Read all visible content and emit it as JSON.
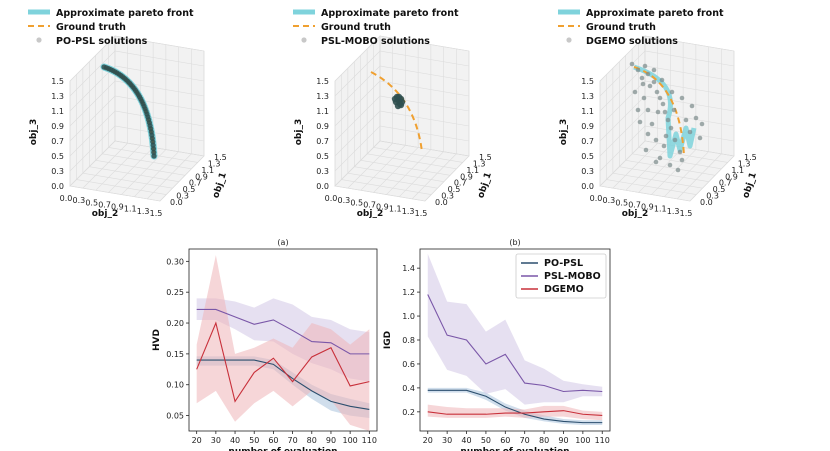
{
  "colors": {
    "pareto": "#7fd3dc",
    "truth": "#f0a030",
    "po_psl": "#2c4f6e",
    "psl_mobo": "#7a57a8",
    "dgemo": "#c8303a",
    "po_psl_band": "#a9c3dc",
    "psl_mobo_band": "#d2c6e6",
    "dgemo_band": "#efb4b8",
    "points": "#2f4f4f"
  },
  "chart_data": [
    {
      "type": "scatter3d",
      "name": "PO-PSL",
      "legend": [
        "Approximate pareto front",
        "Ground truth",
        "PO-PSL solutions"
      ],
      "axes": {
        "z_label": "obj_3",
        "z_ticks": [
          "0.0",
          "0.3",
          "0.5",
          "0.7",
          "0.9",
          "1.1",
          "1.3",
          "1.5"
        ],
        "x_label": "obj_2",
        "x_ticks": [
          "0.0",
          "0.3",
          "0.5",
          "0.7",
          "0.9",
          "1.1",
          "1.3",
          "1.5"
        ],
        "y_label": "obj_1",
        "y_ticks": [
          "0.0",
          "0.3",
          "0.5",
          "0.7",
          "0.9",
          "1.1",
          "1.3",
          "1.5"
        ]
      }
    },
    {
      "type": "scatter3d",
      "name": "PSL-MOBO",
      "legend": [
        "Approximate pareto front",
        "Ground truth",
        "PSL-MOBO solutions"
      ],
      "axes": {
        "z_label": "obj_3",
        "z_ticks": [
          "0.0",
          "0.3",
          "0.5",
          "0.7",
          "0.9",
          "1.1",
          "1.3",
          "1.5"
        ],
        "x_label": "obj_2",
        "x_ticks": [
          "0.0",
          "0.3",
          "0.5",
          "0.7",
          "0.9",
          "1.1",
          "1.3",
          "1.5"
        ],
        "y_label": "obj_1",
        "y_ticks": [
          "0.0",
          "0.3",
          "0.5",
          "0.7",
          "0.9",
          "1.1",
          "1.3",
          "1.5"
        ]
      }
    },
    {
      "type": "scatter3d",
      "name": "DGEMO",
      "legend": [
        "Approximate pareto front",
        "Ground truth",
        "DGEMO solutions"
      ],
      "axes": {
        "z_label": "obj_3",
        "z_ticks": [
          "0.0",
          "0.3",
          "0.5",
          "0.7",
          "0.9",
          "1.1",
          "1.3",
          "1.5"
        ],
        "x_label": "obj_2",
        "x_ticks": [
          "0.0",
          "0.3",
          "0.5",
          "0.7",
          "0.9",
          "1.1",
          "1.3",
          "1.5"
        ],
        "y_label": "obj_1",
        "y_ticks": [
          "0.0",
          "0.3",
          "0.5",
          "0.7",
          "0.9",
          "1.1",
          "1.3",
          "1.5"
        ]
      }
    },
    {
      "type": "line",
      "caption": "(a)",
      "xlabel": "number of evaluation",
      "ylabel": "HVD",
      "x": [
        20,
        30,
        40,
        50,
        60,
        70,
        80,
        90,
        100,
        110
      ],
      "x_ticks": [
        "20",
        "30",
        "40",
        "50",
        "60",
        "70",
        "80",
        "90",
        "100",
        "110"
      ],
      "y_ticks": [
        "0.05",
        "0.10",
        "0.15",
        "0.20",
        "0.25",
        "0.30"
      ],
      "ylim": [
        0.025,
        0.32
      ],
      "series": [
        {
          "name": "PO-PSL",
          "values": [
            0.14,
            0.14,
            0.14,
            0.14,
            0.133,
            0.11,
            0.09,
            0.073,
            0.065,
            0.06
          ],
          "lower": [
            0.131,
            0.131,
            0.131,
            0.131,
            0.125,
            0.1,
            0.077,
            0.058,
            0.05,
            0.046
          ],
          "upper": [
            0.146,
            0.146,
            0.146,
            0.146,
            0.14,
            0.12,
            0.1,
            0.085,
            0.077,
            0.07
          ]
        },
        {
          "name": "PSL-MOBO",
          "values": [
            0.222,
            0.222,
            0.21,
            0.198,
            0.205,
            0.188,
            0.17,
            0.168,
            0.15,
            0.15
          ],
          "lower": [
            0.205,
            0.205,
            0.19,
            0.172,
            0.17,
            0.15,
            0.135,
            0.125,
            0.11,
            0.105
          ],
          "upper": [
            0.24,
            0.24,
            0.235,
            0.225,
            0.24,
            0.23,
            0.21,
            0.205,
            0.19,
            0.185
          ]
        },
        {
          "name": "DGEMO",
          "values": [
            0.125,
            0.2,
            0.073,
            0.12,
            0.143,
            0.105,
            0.145,
            0.16,
            0.098,
            0.105
          ],
          "lower": [
            0.07,
            0.09,
            0.04,
            0.07,
            0.09,
            0.065,
            0.09,
            0.075,
            0.035,
            0.025
          ],
          "upper": [
            0.165,
            0.31,
            0.15,
            0.16,
            0.175,
            0.16,
            0.2,
            0.19,
            0.165,
            0.19
          ]
        }
      ]
    },
    {
      "type": "line",
      "caption": "(b)",
      "xlabel": "number of evaluation",
      "ylabel": "IGD",
      "x": [
        20,
        30,
        40,
        50,
        60,
        70,
        80,
        90,
        100,
        110
      ],
      "x_ticks": [
        "20",
        "30",
        "40",
        "50",
        "60",
        "70",
        "80",
        "90",
        "100",
        "110"
      ],
      "y_ticks": [
        "0.2",
        "0.4",
        "0.6",
        "0.8",
        "1.0",
        "1.2",
        "1.4"
      ],
      "ylim": [
        0.04,
        1.56
      ],
      "legend": [
        "PO-PSL",
        "PSL-MOBO",
        "DGEMO"
      ],
      "series": [
        {
          "name": "PO-PSL",
          "values": [
            0.38,
            0.38,
            0.38,
            0.33,
            0.24,
            0.18,
            0.14,
            0.12,
            0.11,
            0.11
          ],
          "lower": [
            0.36,
            0.36,
            0.36,
            0.3,
            0.21,
            0.15,
            0.12,
            0.1,
            0.09,
            0.09
          ],
          "upper": [
            0.4,
            0.4,
            0.4,
            0.36,
            0.27,
            0.21,
            0.17,
            0.14,
            0.13,
            0.13
          ]
        },
        {
          "name": "PSL-MOBO",
          "values": [
            1.18,
            0.84,
            0.8,
            0.6,
            0.68,
            0.44,
            0.42,
            0.37,
            0.38,
            0.37
          ],
          "lower": [
            0.83,
            0.55,
            0.5,
            0.35,
            0.39,
            0.26,
            0.28,
            0.28,
            0.33,
            0.33
          ],
          "upper": [
            1.52,
            1.12,
            1.1,
            0.87,
            0.97,
            0.63,
            0.56,
            0.46,
            0.43,
            0.41
          ]
        },
        {
          "name": "DGEMO",
          "values": [
            0.2,
            0.18,
            0.18,
            0.18,
            0.19,
            0.19,
            0.2,
            0.21,
            0.18,
            0.17
          ],
          "lower": [
            0.16,
            0.15,
            0.15,
            0.15,
            0.16,
            0.15,
            0.16,
            0.16,
            0.14,
            0.13
          ],
          "upper": [
            0.26,
            0.24,
            0.23,
            0.23,
            0.23,
            0.22,
            0.25,
            0.25,
            0.21,
            0.2
          ]
        }
      ]
    }
  ]
}
